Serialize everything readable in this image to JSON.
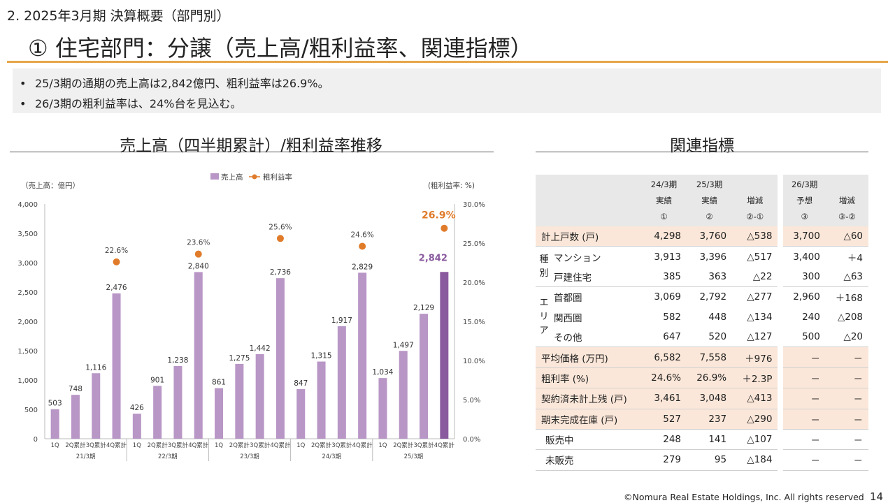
{
  "section": "2. 2025年3月期 決算概要（部門別）",
  "title": "① 住宅部門：分譲（売上高/粗利益率、関連指標）",
  "bullets": [
    "25/3期の通期の売上高は2,842億円、粗利益率は26.9%。",
    "26/3期の粗利益率は、24%台を見込む。"
  ],
  "bullet_marker": "•",
  "chart_title": "売上高（四半期累計）/粗利益率推移",
  "table_title": "関連指標",
  "chart_data": {
    "type": "bar",
    "left_axis_label": "（売上高：億円）",
    "right_axis_label": "(粗利益率: %)",
    "legend": [
      {
        "name": "売上高",
        "color": "#b896c6"
      },
      {
        "name": "粗利益率",
        "color": "#e07b2a"
      }
    ],
    "ylim": [
      0,
      4000
    ],
    "yticks": [
      "0",
      "500",
      "1,000",
      "1,500",
      "2,000",
      "2,500",
      "3,000",
      "3,500",
      "4,000"
    ],
    "y2lim": [
      0,
      30
    ],
    "y2ticks": [
      "0.0%",
      "5.0%",
      "10.0%",
      "15.0%",
      "20.0%",
      "25.0%",
      "30.0%"
    ],
    "quarter_labels": [
      "1Q",
      "2Q累計",
      "3Q累計",
      "4Q累計"
    ],
    "groups": [
      {
        "label": "21/3期",
        "values": [
          503,
          748,
          1116,
          2476
        ],
        "value_labels": [
          "503",
          "748",
          "1,116",
          "2,476"
        ],
        "margin": 22.6,
        "margin_label": "22.6%"
      },
      {
        "label": "22/3期",
        "values": [
          426,
          901,
          1238,
          2840
        ],
        "value_labels": [
          "426",
          "901",
          "1,238",
          "2,840"
        ],
        "margin": 23.6,
        "margin_label": "23.6%"
      },
      {
        "label": "23/3期",
        "values": [
          861,
          1275,
          1442,
          2736
        ],
        "value_labels": [
          "861",
          "1,275",
          "1,442",
          "2,736"
        ],
        "margin": 25.6,
        "margin_label": "25.6%"
      },
      {
        "label": "24/3期",
        "values": [
          847,
          1315,
          1917,
          2829
        ],
        "value_labels": [
          "847",
          "1,315",
          "1,917",
          "2,829"
        ],
        "margin": 24.6,
        "margin_label": "24.6%"
      },
      {
        "label": "25/3期",
        "values": [
          1034,
          1497,
          2129,
          2842
        ],
        "value_labels": [
          "1,034",
          "1,497",
          "2,129",
          "2,842"
        ],
        "margin": 26.9,
        "margin_label": "26.9%"
      }
    ],
    "bar_color": "#b896c6",
    "highlight_bar_color": "#8a5a9e",
    "margin_color": "#e07b2a"
  },
  "table": {
    "header": [
      [
        "",
        ""
      ],
      [
        "24/3期",
        "実績",
        "①"
      ],
      [
        "25/3期",
        "実績",
        "②"
      ],
      [
        "",
        "増減",
        "②-①"
      ],
      [
        "26/3期",
        "予想",
        "③"
      ],
      [
        "",
        "増減",
        "③-②"
      ]
    ],
    "rows": [
      {
        "group": "",
        "label": "計上戸数 (戸)",
        "values": [
          "4,298",
          "3,760",
          "△538",
          "3,700",
          "△60"
        ]
      },
      {
        "group": "種別",
        "label": "マンション",
        "values": [
          "3,913",
          "3,396",
          "△517",
          "3,400",
          "＋4"
        ]
      },
      {
        "group": "",
        "label": "戸建住宅",
        "values": [
          "385",
          "363",
          "△22",
          "300",
          "△63"
        ]
      },
      {
        "group": "エリア",
        "label": "首都圏",
        "values": [
          "3,069",
          "2,792",
          "△277",
          "2,960",
          "＋168"
        ]
      },
      {
        "group": "",
        "label": "関西圏",
        "values": [
          "582",
          "448",
          "△134",
          "240",
          "△208"
        ]
      },
      {
        "group": "",
        "label": "その他",
        "values": [
          "647",
          "520",
          "△127",
          "500",
          "△20"
        ]
      },
      {
        "group": "",
        "label": "平均価格 (万円)",
        "values": [
          "6,582",
          "7,558",
          "＋976",
          "－",
          "－"
        ]
      },
      {
        "group": "",
        "label": "粗利率 (%)",
        "values": [
          "24.6%",
          "26.9%",
          "＋2.3P",
          "－",
          "－"
        ]
      },
      {
        "group": "",
        "label": "契約済未計上残 (戸)",
        "values": [
          "3,461",
          "3,048",
          "△413",
          "－",
          "－"
        ]
      },
      {
        "group": "",
        "label": "期末完成在庫 (戸)",
        "values": [
          "527",
          "237",
          "△290",
          "－",
          "－"
        ]
      },
      {
        "group": "",
        "label": "販売中",
        "values": [
          "248",
          "141",
          "△107",
          "－",
          "－"
        ]
      },
      {
        "group": "",
        "label": "未販売",
        "values": [
          "279",
          "95",
          "△184",
          "－",
          "－"
        ]
      }
    ]
  },
  "footer": "©Nomura Real Estate Holdings, Inc. All rights reserved",
  "page_number": "14"
}
